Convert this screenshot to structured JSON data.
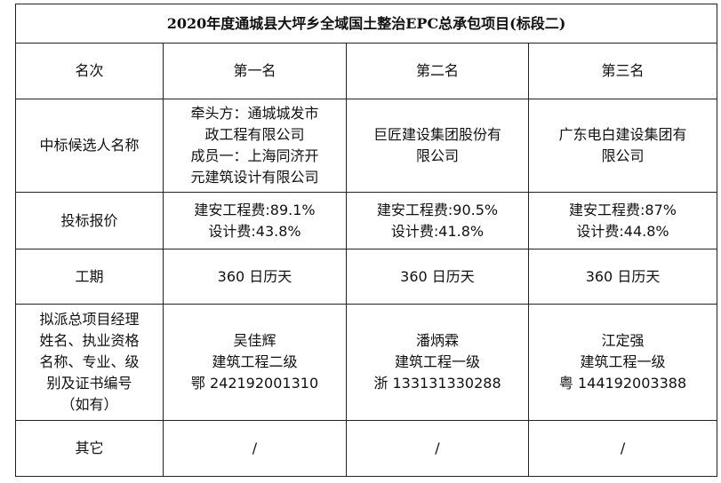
{
  "title": "2020年度通城县大坪乡全域国土整治EPC总承包项目(标段二)",
  "rows": {
    "rank": {
      "label": "名次",
      "values": [
        "第一名",
        "第二名",
        "第三名"
      ]
    },
    "candidate": {
      "label": "中标候选人名称",
      "values": [
        [
          "牵头方：通城城发市",
          "政工程有限公司",
          "成员一：上海同济开",
          "元建筑设计有限公司"
        ],
        [
          "巨匠建设集团股份有",
          "限公司"
        ],
        [
          "广东电白建设集团有",
          "限公司"
        ]
      ]
    },
    "bid": {
      "label": "投标报价",
      "values": [
        [
          "建安工程费:89.1%",
          "设计费:43.8%"
        ],
        [
          "建安工程费:90.5%",
          "设计费:41.8%"
        ],
        [
          "建安工程费:87%",
          "设计费:44.8%"
        ]
      ]
    },
    "period": {
      "label": "工期",
      "values": [
        "360 日历天",
        "360 日历天",
        "360 日历天"
      ]
    },
    "manager": {
      "label": [
        "拟派总项目经理",
        "姓名、执业资格",
        "名称、专业、级",
        "别及证书编号",
        "（如有）"
      ],
      "values": [
        [
          "吴佳辉",
          "建筑工程二级",
          "鄂 242192001310"
        ],
        [
          "潘炳霖",
          "建筑工程一级",
          "浙 133131330288"
        ],
        [
          "江定强",
          "建筑工程一级",
          "粤 144192003388"
        ]
      ]
    },
    "other": {
      "label": "其它",
      "values": [
        "/",
        "/",
        "/"
      ]
    }
  }
}
